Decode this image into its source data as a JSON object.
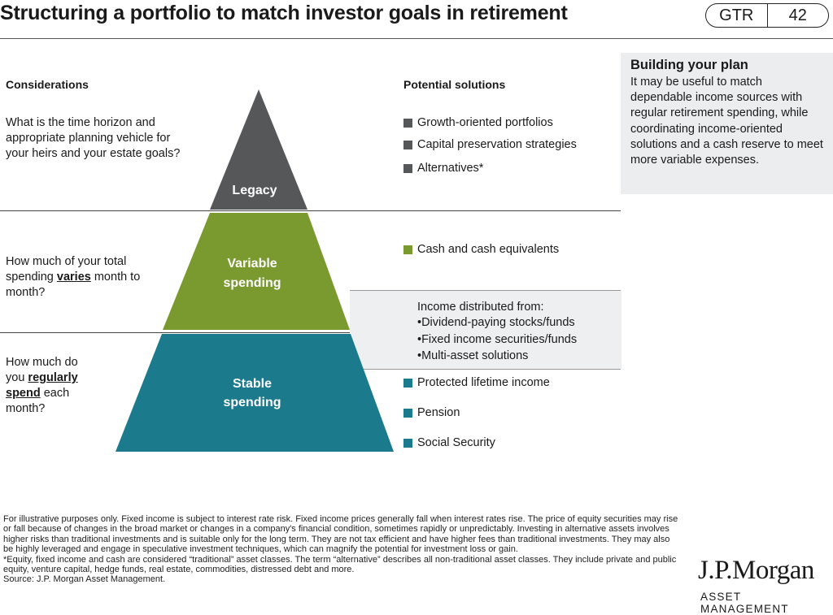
{
  "title": "Structuring a portfolio to match investor goals in retirement",
  "tag": {
    "section": "GTR",
    "page": "42"
  },
  "considerations": {
    "header": "Considerations",
    "legacy": "What is the time horizon and appropriate planning vehicle for your heirs and your estate goals?",
    "variable": {
      "pre": "How much of your total spending ",
      "em": "varies",
      "post": " month to month?"
    },
    "stable": {
      "pre": "How much do you ",
      "em": "regularly spend",
      "post": " each month?"
    }
  },
  "pyramid": {
    "legacy": "Legacy",
    "variable_1": "Variable",
    "variable_2": "spending",
    "stable_1": "Stable",
    "stable_2": "spending"
  },
  "solutions": {
    "header": "Potential solutions",
    "legacy": [
      "Growth-oriented portfolios",
      "Capital preservation strategies",
      "Alternatives*"
    ],
    "variable": [
      "Cash and cash equivalents"
    ],
    "income_header": "Income distributed from:",
    "income_items": [
      "•Dividend-paying stocks/funds",
      "•Fixed income securities/funds",
      "•Multi-asset solutions"
    ],
    "stable": [
      "Protected lifetime income",
      "Pension",
      "Social Security"
    ]
  },
  "plan": {
    "title": "Building your plan",
    "text": "It may be useful to match dependable income sources with regular retirement spending, while coordinating income-oriented solutions and a cash reserve to meet more variable expenses."
  },
  "footnotes": [
    "For illustrative purposes only. Fixed income is subject to interest rate risk. Fixed income prices generally fall when interest rates rise. The price of equity securities may rise or fall because of changes in the broad market or changes in a company's financial condition, sometimes rapidly or unpredictably. Investing in alternative assets involves higher risks than traditional investments and is suitable only for the long term. They are not tax efficient and have higher fees than traditional investments. They may also be highly leveraged and engage in speculative investment techniques, which can magnify the potential for investment loss or gain.",
    "*Equity, fixed income and cash are considered “traditional” asset classes. The term “alternative” describes all non-traditional asset classes. They include private and public equity, venture capital, hedge funds, real estate, commodities, distressed debt and more.",
    "Source: J.P. Morgan Asset Management."
  ],
  "logo": {
    "name": "J.P.Morgan",
    "sub": "ASSET MANAGEMENT"
  },
  "colors": {
    "legacy": "#555759",
    "variable": "#7a9a2f",
    "stable": "#1b7a8c",
    "box": "#ecedef"
  }
}
